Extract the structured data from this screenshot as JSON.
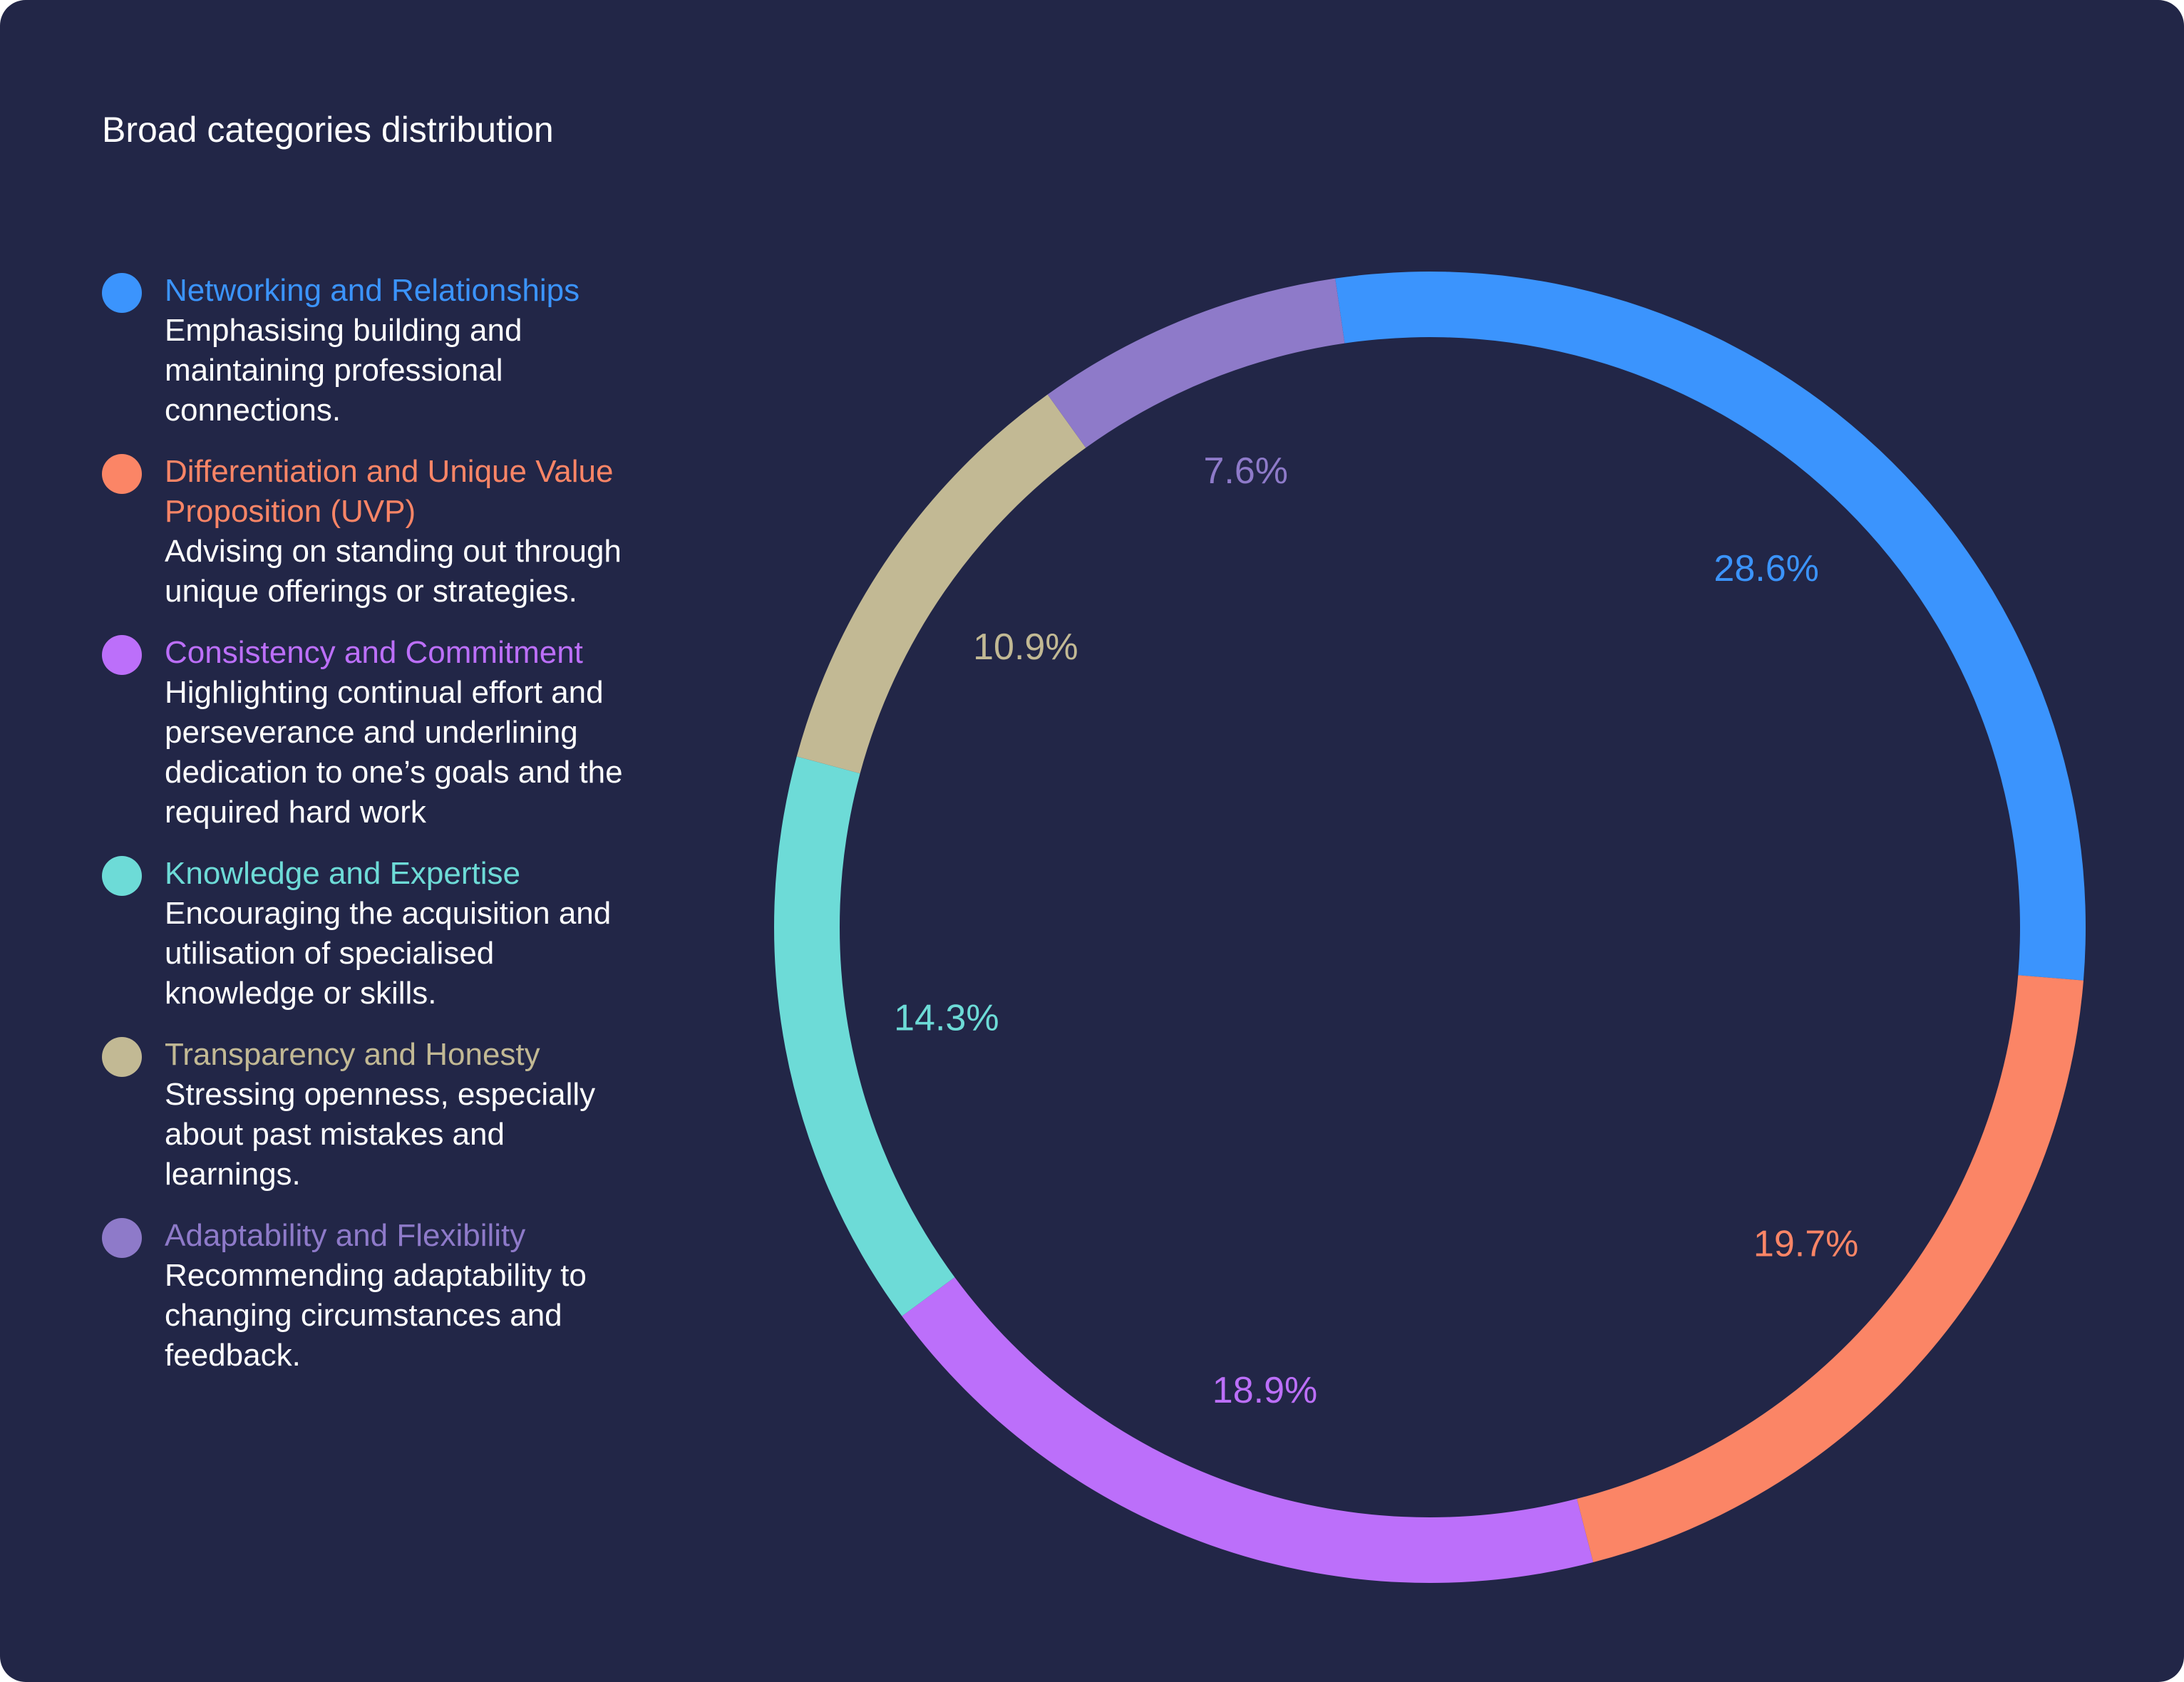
{
  "chart_data": {
    "type": "pie",
    "title": "Broad categories distribution",
    "categories": [
      "Networking and Relationships",
      "Differentiation and Unique Value Proposition (UVP)",
      "Consistency and Commitment",
      "Knowledge and Expertise",
      "Transparency and Honesty",
      "Adaptability and Flexibility"
    ],
    "values": [
      28.6,
      19.7,
      18.9,
      14.3,
      10.9,
      7.6
    ],
    "labels": [
      "28.6%",
      "19.7%",
      "18.9%",
      "14.3%",
      "10.9%",
      "7.6%"
    ],
    "colors": [
      "#3b94fd",
      "#fb8566",
      "#bc6ffa",
      "#6ddbd7",
      "#c2b994",
      "#8e7ac9"
    ],
    "legend_placement": "left",
    "donut": true
  },
  "legend": [
    {
      "name": "Networking and Relationships",
      "description": "Emphasising building and maintaining professional connections.",
      "color": "#3b94fd"
    },
    {
      "name": "Differentiation and Unique Value Proposition (UVP)",
      "description": "Advising on standing out through unique offerings or strategies.",
      "color": "#fb8566"
    },
    {
      "name": "Consistency and Commitment",
      "description": "Highlighting continual effort and perseverance and underlining dedication to one’s goals and the required hard work",
      "color": "#bc6ffa"
    },
    {
      "name": "Knowledge and Expertise",
      "description": "Encouraging the acquisition and utilisation of specialised knowledge or skills.",
      "color": "#6ddbd7"
    },
    {
      "name": "Transparency and Honesty",
      "description": "Stressing openness, especially about past mistakes and learnings.",
      "color": "#c2b994"
    },
    {
      "name": "Adaptability and Flexibility",
      "description": "Recommending adaptability to changing circumstances and feedback.",
      "color": "#8e7ac9"
    }
  ]
}
